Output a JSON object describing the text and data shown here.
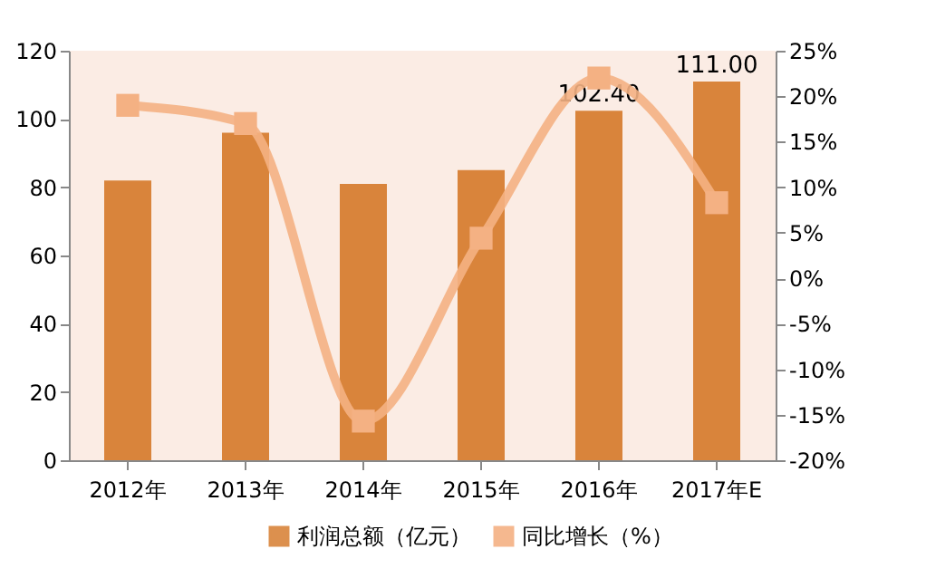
{
  "chart_data": {
    "type": "bar",
    "categories": [
      "2012年",
      "2013年",
      "2014年",
      "2015年",
      "2016年",
      "2017年E"
    ],
    "series": [
      {
        "name": "利润总额（亿元）",
        "color": "#d9843b",
        "values": [
          82,
          96,
          81,
          85,
          102.4,
          111
        ],
        "value_labels": [
          null,
          null,
          null,
          null,
          "102.40",
          "111.00"
        ]
      },
      {
        "name": "同比增长（%）",
        "type": "line",
        "axis": "y2",
        "color": "#f4b183",
        "marker": "square",
        "values": [
          19,
          17,
          -15.7,
          4.4,
          22,
          8.3
        ]
      }
    ],
    "ylim": [
      0,
      120
    ],
    "yticks": [
      0,
      20,
      40,
      60,
      80,
      100,
      120
    ],
    "y2lim": [
      -20,
      25
    ],
    "y2ticks": [
      {
        "value": -20,
        "label": "-20%"
      },
      {
        "value": -15,
        "label": "-15%"
      },
      {
        "value": -10,
        "label": "-10%"
      },
      {
        "value": -5,
        "label": "-5%"
      },
      {
        "value": 0,
        "label": "0%"
      },
      {
        "value": 5,
        "label": "5%"
      },
      {
        "value": 10,
        "label": "10%"
      },
      {
        "value": 15,
        "label": "15%"
      },
      {
        "value": 20,
        "label": "20%"
      },
      {
        "value": 25,
        "label": "25%"
      }
    ],
    "legend": "bottom",
    "grid": false
  }
}
